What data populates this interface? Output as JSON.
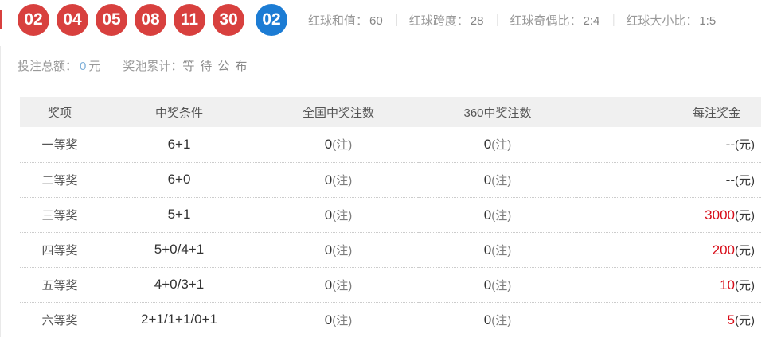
{
  "colors": {
    "red_ball": "#d8403e",
    "blue_ball": "#1c7cd4",
    "prize_red": "#d80c18",
    "bet_value_blue": "#7fb0d9",
    "header_bg": "#f0f0f0"
  },
  "balls": {
    "red": [
      "02",
      "04",
      "05",
      "08",
      "11",
      "30"
    ],
    "blue": "02"
  },
  "stats": {
    "sep": "｜",
    "items": [
      {
        "label": "红球和值：",
        "value": "60"
      },
      {
        "label": "红球跨度：",
        "value": "28"
      },
      {
        "label": "红球奇偶比：",
        "value": "2:4"
      },
      {
        "label": "红球大小比：",
        "value": "1:5"
      }
    ]
  },
  "summary": {
    "bet_total_label": "投注总额：",
    "bet_total_value": "0",
    "bet_total_unit": "元",
    "jackpot_label": "奖池累计：",
    "jackpot_value": "等待公布"
  },
  "prize_table": {
    "headers": [
      "奖项",
      "中奖条件",
      "全国中奖注数",
      "360中奖注数",
      "每注奖金"
    ],
    "note_unit": "(注)",
    "yuan_unit": "(元)",
    "rows": [
      {
        "level": "一等奖",
        "condition": "6+1",
        "national": "0",
        "site360": "0",
        "prize": "--"
      },
      {
        "level": "二等奖",
        "condition": "6+0",
        "national": "0",
        "site360": "0",
        "prize": "--"
      },
      {
        "level": "三等奖",
        "condition": "5+1",
        "national": "0",
        "site360": "0",
        "prize": "3000"
      },
      {
        "level": "四等奖",
        "condition": "5+0/4+1",
        "national": "0",
        "site360": "0",
        "prize": "200"
      },
      {
        "level": "五等奖",
        "condition": "4+0/3+1",
        "national": "0",
        "site360": "0",
        "prize": "10"
      },
      {
        "level": "六等奖",
        "condition": "2+1/1+1/0+1",
        "national": "0",
        "site360": "0",
        "prize": "5"
      }
    ]
  }
}
